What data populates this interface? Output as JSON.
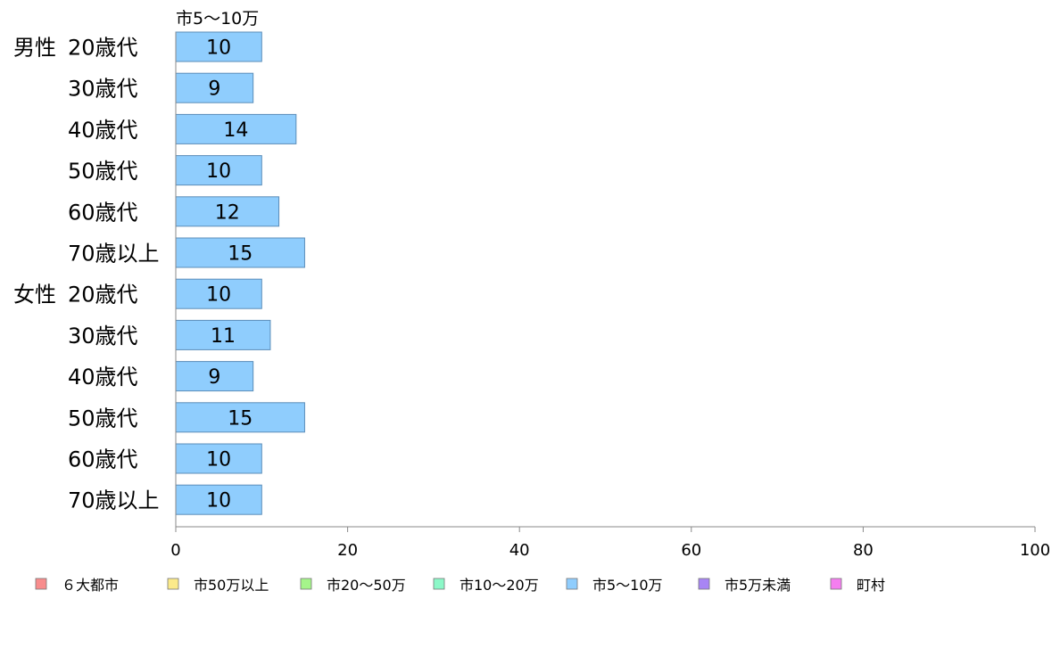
{
  "chart_data": {
    "type": "bar",
    "orientation": "horizontal",
    "title": "市5〜10万",
    "groups": [
      {
        "label": "男性",
        "categories": [
          "20歳代",
          "30歳代",
          "40歳代",
          "50歳代",
          "60歳代",
          "70歳以上"
        ],
        "values": [
          10,
          9,
          14,
          10,
          12,
          15
        ]
      },
      {
        "label": "女性",
        "categories": [
          "20歳代",
          "30歳代",
          "40歳代",
          "50歳代",
          "60歳代",
          "70歳以上"
        ],
        "values": [
          10,
          11,
          9,
          15,
          10,
          10
        ]
      }
    ],
    "series": [
      {
        "name": "市5〜10万",
        "color": "#8fcdfd",
        "border": "#5b8db8"
      }
    ],
    "xlim": [
      0,
      100
    ],
    "xticks": [
      0,
      20,
      40,
      60,
      80,
      100
    ],
    "grid": false,
    "legend_position": "bottom",
    "legend": [
      {
        "name": "６大都市",
        "color": "#f88c8c"
      },
      {
        "name": "市50万以上",
        "color": "#fbea8a"
      },
      {
        "name": "市20〜50万",
        "color": "#a5f58a"
      },
      {
        "name": "市10〜20万",
        "color": "#8cf8c8"
      },
      {
        "name": "市5〜10万",
        "color": "#8fcdfd"
      },
      {
        "name": "市5万未満",
        "color": "#a885f4"
      },
      {
        "name": "町村",
        "color": "#f57ef0"
      }
    ]
  }
}
